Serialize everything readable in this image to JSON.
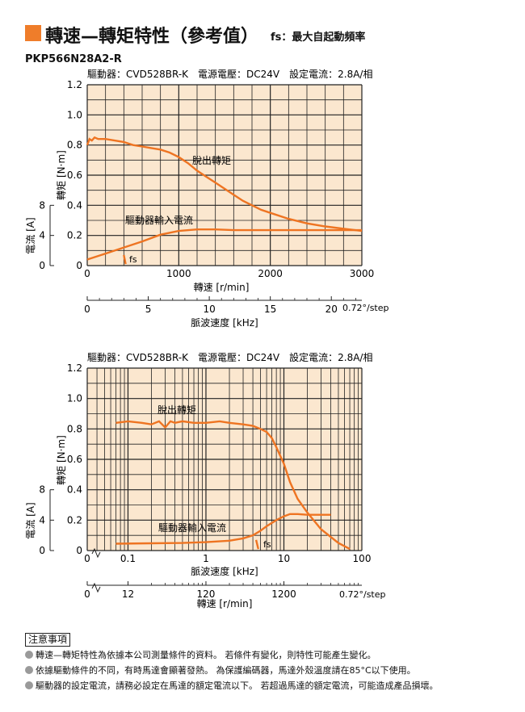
{
  "header": {
    "title": "轉速—轉矩特性（參考值）",
    "title_note": "fs：最大自起動頻率",
    "model": "PKP566N28A2-R",
    "accent_color": "#ef7d2a"
  },
  "colors": {
    "plot_bg": "#fbe7cf",
    "curve": "#ee7422",
    "grid": "#222222"
  },
  "chart_data": [
    {
      "type": "line",
      "x_scale": "linear",
      "conditions": "驅動器：CVD528BR-K　電源電壓：DC24V　設定電流：2.8A/相",
      "xlabel": "轉速 [r/min]",
      "ylabel": "轉矩 [N·m]",
      "ylabel2": "電流 [A]",
      "xlim": [
        0,
        3000
      ],
      "ylim": [
        0,
        1.2
      ],
      "x_ticks": [
        "0",
        "1000",
        "2000",
        "3000"
      ],
      "y_ticks": [
        "0",
        "0.2",
        "0.4",
        "0.6",
        "0.8",
        "1.0",
        "1.2"
      ],
      "y2_ticks": [
        "0",
        "4",
        "8"
      ],
      "secondary_axis": {
        "label": "脈波速度 [kHz]",
        "ticks": [
          "0",
          "5",
          "10",
          "15",
          "20"
        ],
        "unit_note": "0.72°/step"
      },
      "series": [
        {
          "name": "脫出轉矩",
          "x": [
            0,
            25,
            50,
            80,
            120,
            200,
            300,
            400,
            500,
            600,
            700,
            800,
            900,
            1000,
            1100,
            1200,
            1300,
            1400,
            1500,
            1600,
            1700,
            1800,
            1900,
            2000,
            2200,
            2400,
            2600,
            2800,
            3000
          ],
          "y": [
            0.8,
            0.84,
            0.83,
            0.85,
            0.84,
            0.84,
            0.83,
            0.82,
            0.8,
            0.79,
            0.78,
            0.77,
            0.75,
            0.72,
            0.68,
            0.63,
            0.59,
            0.55,
            0.51,
            0.47,
            0.43,
            0.4,
            0.37,
            0.35,
            0.31,
            0.28,
            0.26,
            0.245,
            0.23
          ]
        },
        {
          "name": "驅動器輸入電流",
          "x": [
            0,
            200,
            400,
            600,
            800,
            1000,
            1200,
            1400,
            1600,
            1800,
            2000,
            2200,
            2400,
            2600,
            2800,
            3000
          ],
          "y": [
            0.04,
            0.08,
            0.12,
            0.16,
            0.205,
            0.23,
            0.24,
            0.24,
            0.235,
            0.235,
            0.235,
            0.235,
            0.235,
            0.235,
            0.235,
            0.235
          ]
        },
        {
          "name": "fs",
          "x": [
            400,
            420
          ],
          "y": [
            0.07,
            0.01
          ]
        }
      ]
    },
    {
      "type": "line",
      "x_scale": "log",
      "conditions": "驅動器：CVD528BR-K　電源電壓：DC24V　設定電流：2.8A/相",
      "xlabel": "脈波速度 [kHz]",
      "ylabel": "轉矩 [N·m]",
      "ylabel2": "電流 [A]",
      "xlim": [
        0.03,
        100
      ],
      "ylim": [
        0,
        1.2
      ],
      "x_ticks": [
        "0",
        "0.1",
        "1",
        "10",
        "100"
      ],
      "y_ticks": [
        "0",
        "0.2",
        "0.4",
        "0.6",
        "0.8",
        "1.0",
        "1.2"
      ],
      "y2_ticks": [
        "0",
        "4",
        "8"
      ],
      "secondary_axis": {
        "label": "轉速 [r/min]",
        "ticks": [
          "0",
          "12",
          "120",
          "1200"
        ],
        "unit_note": "0.72°/step"
      },
      "series": [
        {
          "name": "脫出轉矩",
          "x": [
            0.07,
            0.1,
            0.15,
            0.2,
            0.25,
            0.3,
            0.35,
            0.4,
            0.5,
            0.7,
            1,
            1.5,
            2,
            3,
            4,
            5,
            6,
            7,
            8,
            10,
            12,
            15,
            20,
            30,
            50,
            70
          ],
          "y": [
            0.84,
            0.85,
            0.84,
            0.83,
            0.85,
            0.81,
            0.85,
            0.84,
            0.85,
            0.84,
            0.84,
            0.85,
            0.84,
            0.83,
            0.82,
            0.8,
            0.78,
            0.74,
            0.68,
            0.57,
            0.45,
            0.34,
            0.25,
            0.14,
            0.05,
            0.01
          ]
        },
        {
          "name": "驅動器輸入電流",
          "x": [
            0.07,
            0.2,
            0.5,
            1,
            2,
            3,
            4,
            5,
            6,
            8,
            10,
            12,
            15,
            20,
            30,
            40
          ],
          "y": [
            0.045,
            0.048,
            0.05,
            0.055,
            0.065,
            0.08,
            0.1,
            0.13,
            0.16,
            0.2,
            0.225,
            0.24,
            0.24,
            0.235,
            0.235,
            0.235
          ]
        },
        {
          "name": "fs",
          "x": [
            4.4,
            4.7
          ],
          "y": [
            0.07,
            0.01
          ]
        }
      ]
    }
  ],
  "charts": [
    {
      "torque_label": "脫出轉矩",
      "current_label": "驅動器輸入電流",
      "fs_label": "fs"
    },
    {
      "torque_label": "脫出轉矩",
      "current_label": "驅動器輸入電流",
      "fs_label": "fs"
    }
  ],
  "notes": {
    "heading": "注意事項",
    "lines": [
      "轉速—轉矩特性為依據本公司測量條件的資料。 若條件有變化，則特性可能產生變化。",
      "依據驅動條件的不同，有時馬達會顯著發熱。 為保護編碼器，馬達外殼溫度請在85°C以下使用。",
      "驅動器的設定電流，請務必設定在馬達的額定電流以下。 若超過馬達的額定電流，可能造成產品損壞。"
    ]
  }
}
